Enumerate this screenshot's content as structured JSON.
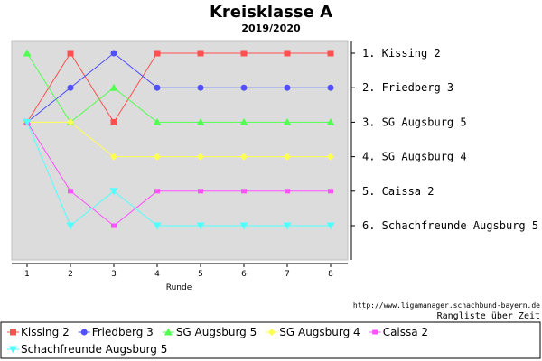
{
  "chart_data": {
    "type": "line",
    "title": "Kreisklasse A",
    "subtitle": "2019/2020",
    "xlabel": "Runde",
    "ylabel": "",
    "x": [
      1,
      2,
      3,
      4,
      5,
      6,
      7,
      8
    ],
    "ylim": [
      1,
      6
    ],
    "y_inverted": true,
    "grid": false,
    "legend_position": "bottom",
    "rank_labels": [
      "1. Kissing 2",
      "2. Friedberg 3",
      "3. SG Augsburg 5",
      "4. SG Augsburg 4",
      "5. Caissa 2",
      "6. Schachfreunde Augsburg 5"
    ],
    "source": "http://www.ligamanager.schachbund-bayern.de",
    "caption": "Rangliste über Zeit",
    "series": [
      {
        "name": "Kissing 2",
        "color": "#ff5050",
        "marker": "square",
        "values": [
          3,
          1,
          3,
          1,
          1,
          1,
          1,
          1
        ]
      },
      {
        "name": "Friedberg 3",
        "color": "#5050ff",
        "marker": "circle",
        "values": [
          3,
          2,
          1,
          2,
          2,
          2,
          2,
          2
        ]
      },
      {
        "name": "SG Augsburg 5",
        "color": "#50ff50",
        "marker": "triangle-up",
        "values": [
          1,
          3,
          2,
          3,
          3,
          3,
          3,
          3
        ]
      },
      {
        "name": "SG Augsburg 4",
        "color": "#ffff50",
        "marker": "diamond",
        "values": [
          3,
          3,
          4,
          4,
          4,
          4,
          4,
          4
        ]
      },
      {
        "name": "Caissa 2",
        "color": "#ff50ff",
        "marker": "square-small",
        "values": [
          3,
          5,
          6,
          5,
          5,
          5,
          5,
          5
        ]
      },
      {
        "name": "Schachfreunde Augsburg 5",
        "color": "#50ffff",
        "marker": "triangle-down",
        "values": [
          3,
          6,
          5,
          6,
          6,
          6,
          6,
          6
        ]
      }
    ]
  }
}
